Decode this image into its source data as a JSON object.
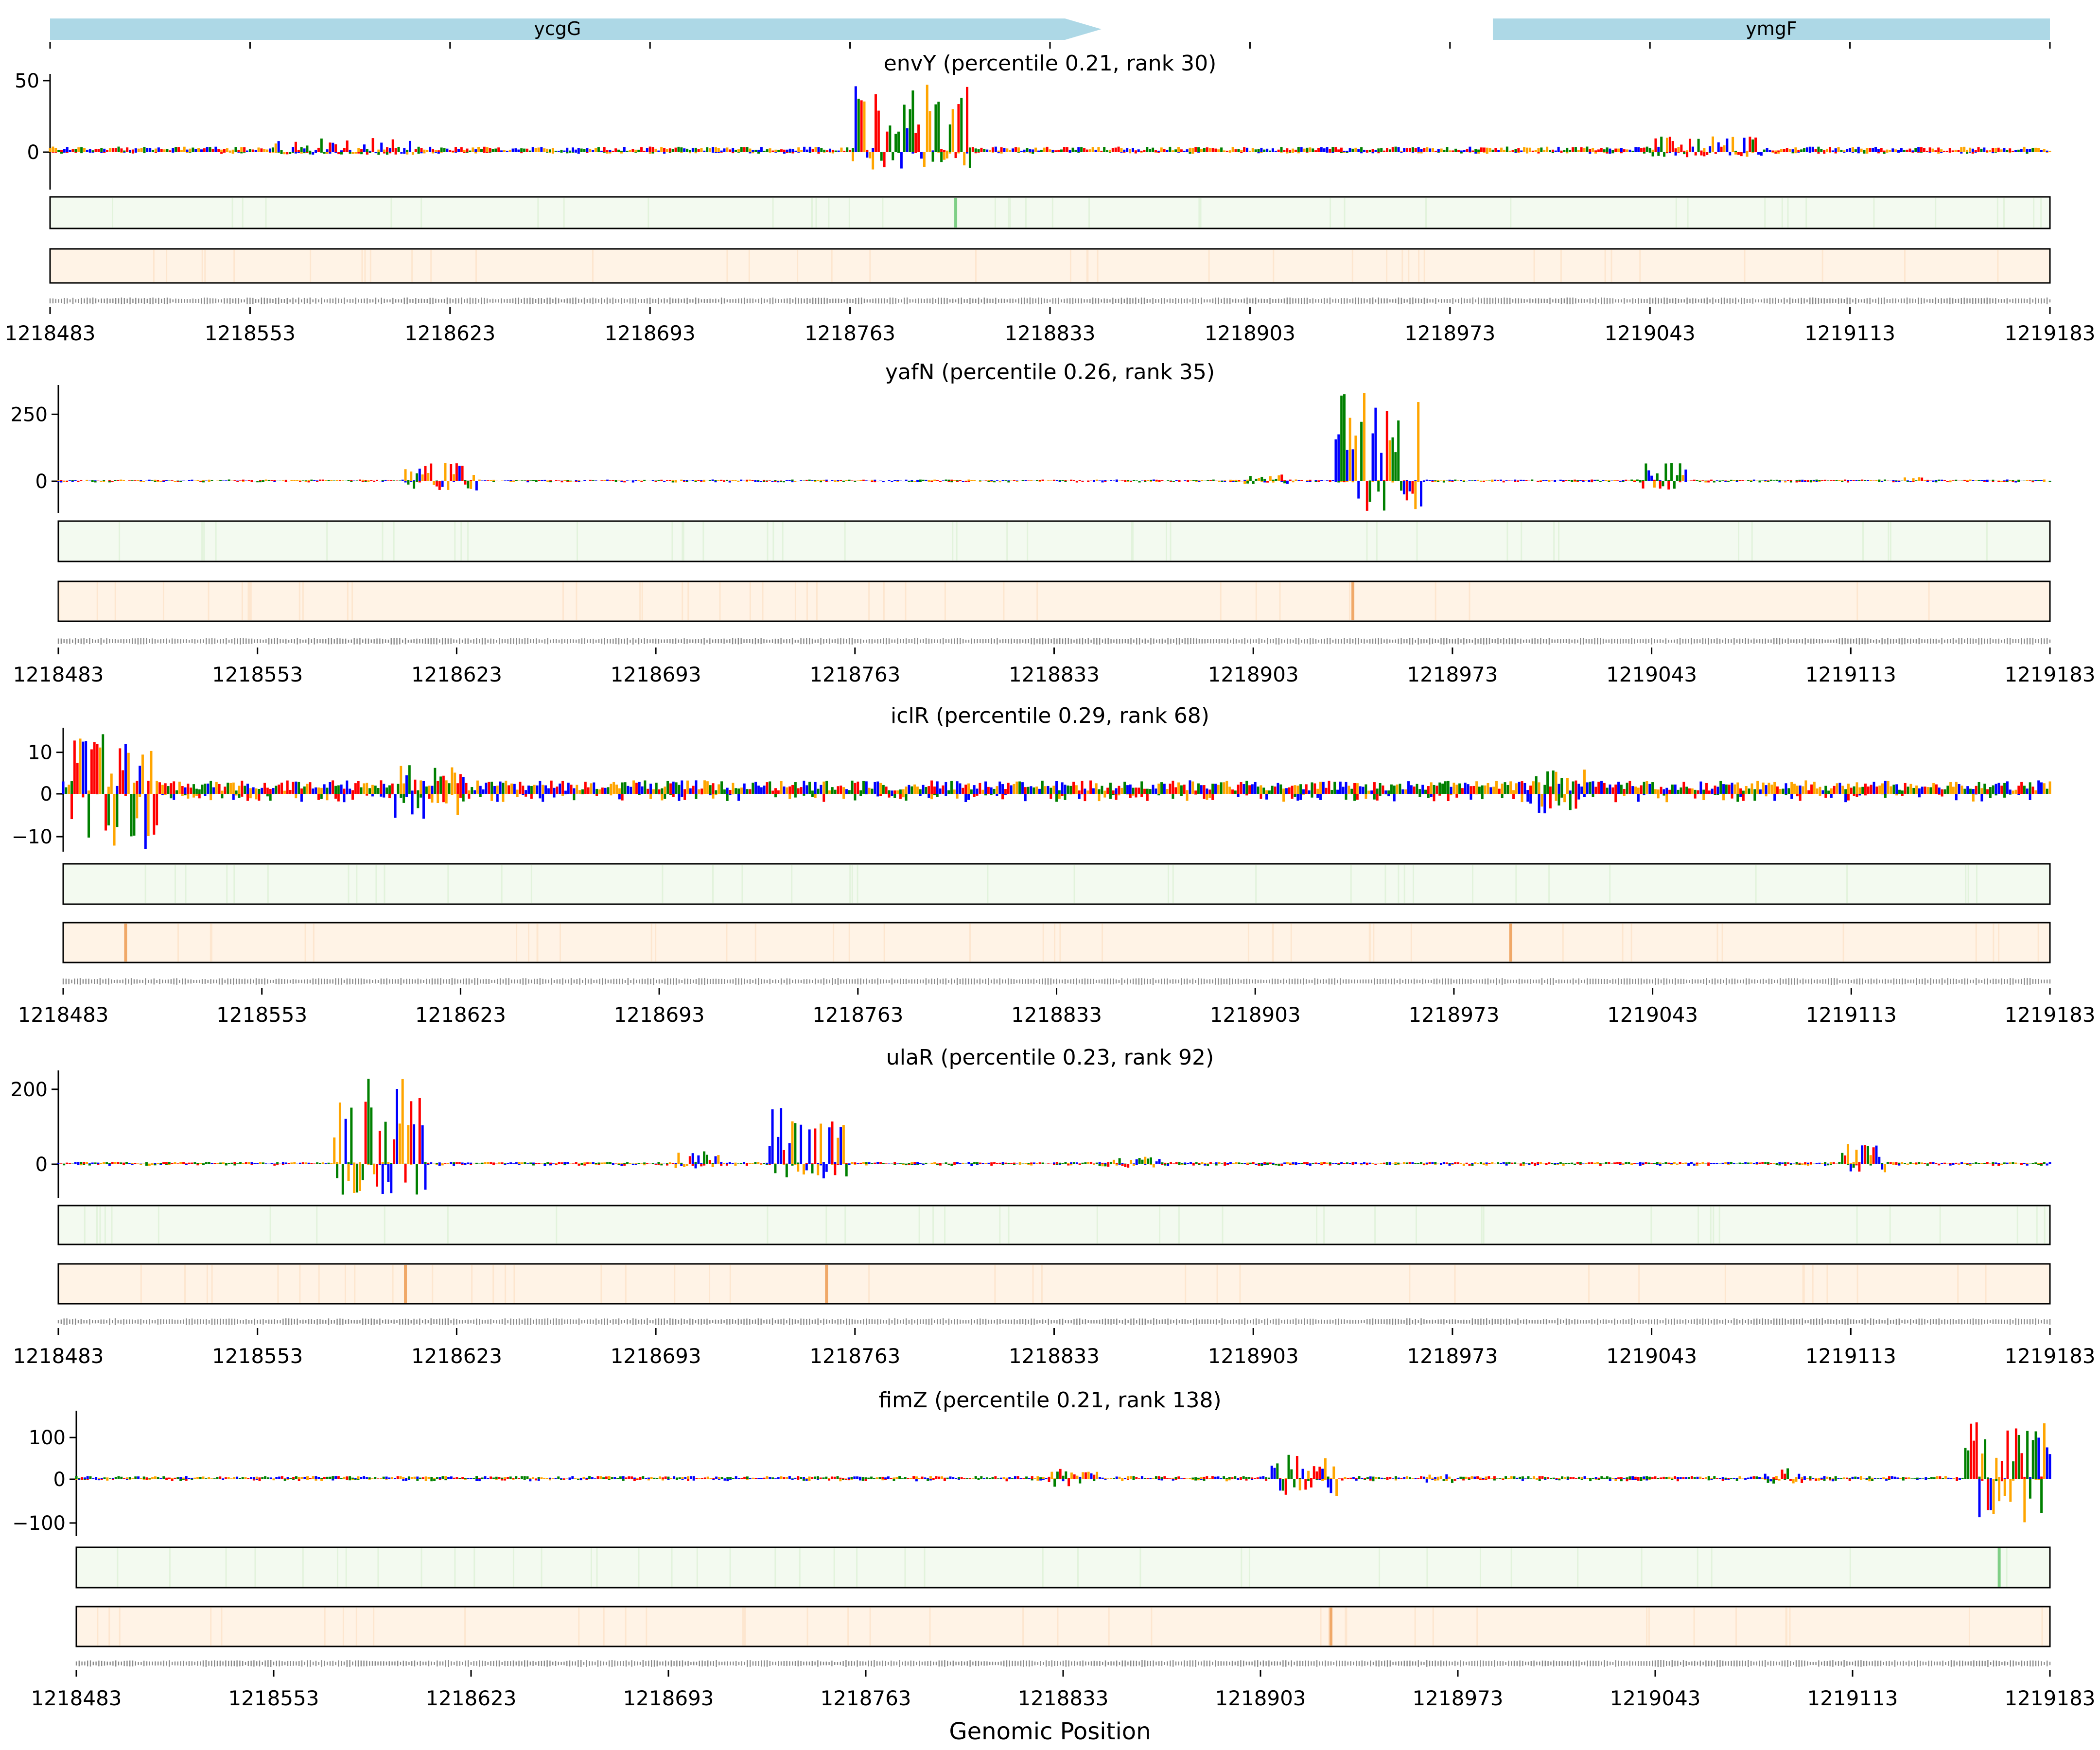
{
  "figure": {
    "xlabel": "Genomic Position"
  },
  "genes": [
    {
      "name": "ycgG",
      "start": 1218483,
      "end": 1218851,
      "strand": "+"
    },
    {
      "name": "ymgF",
      "start": 1218988,
      "end": 1219183,
      "strand": "+"
    }
  ],
  "colors": {
    "A": "#008000",
    "C": "#0000ff",
    "G": "#ffa500",
    "T": "#ff0000",
    "gene": "#add8e6",
    "strip1": "#f3faf0",
    "strip1_peak": "#7fcf86",
    "strip2": "#fff3e6",
    "strip2_peak": "#f0a868"
  },
  "chart_data": [
    {
      "type": "sequence-logo",
      "title": "envY (percentile 0.21, rank 30)",
      "xlim": [
        1218483,
        1219183
      ],
      "x_ticks": [
        "1218483",
        "1218553",
        "1218623",
        "1218693",
        "1218763",
        "1218833",
        "1218903",
        "1218973",
        "1219043",
        "1219113",
        "1219183"
      ],
      "ylim": [
        -52,
        52
      ],
      "y_ticks": [
        {
          "value": 50,
          "label": "50"
        },
        {
          "value": 0,
          "label": "0"
        }
      ],
      "noise": 3,
      "peaks": [
        {
          "start": 1218562,
          "end": 1218610,
          "max": 10,
          "min": -4
        },
        {
          "start": 1218764,
          "end": 1218805,
          "max": 49,
          "min": -25
        },
        {
          "start": 1219043,
          "end": 1219082,
          "max": 11,
          "min": -7
        }
      ],
      "strip1_hot": [
        1218800
      ],
      "strip2_hot": []
    },
    {
      "type": "sequence-logo",
      "title": "yafN (percentile 0.26, rank 35)",
      "xlim": [
        1218483,
        1219183
      ],
      "x_ticks": [
        "1218483",
        "1218553",
        "1218623",
        "1218693",
        "1218763",
        "1218833",
        "1218903",
        "1218973",
        "1219043",
        "1219113",
        "1219183"
      ],
      "ylim": [
        -100,
        345
      ],
      "y_ticks": [
        {
          "value": 250,
          "label": "250"
        },
        {
          "value": 0,
          "label": "0"
        }
      ],
      "noise": 5,
      "peaks": [
        {
          "start": 1218605,
          "end": 1218630,
          "max": 75,
          "min": -30
        },
        {
          "start": 1218900,
          "end": 1218915,
          "max": 25,
          "min": -10
        },
        {
          "start": 1218932,
          "end": 1218962,
          "max": 340,
          "min": -95
        },
        {
          "start": 1219040,
          "end": 1219055,
          "max": 70,
          "min": -28
        },
        {
          "start": 1219132,
          "end": 1219138,
          "max": 25,
          "min": 0
        }
      ],
      "strip1_hot": [],
      "strip2_hot": [
        1218938
      ]
    },
    {
      "type": "sequence-logo",
      "title": "iclR (percentile 0.29, rank 68)",
      "xlim": [
        1218483,
        1219183
      ],
      "x_ticks": [
        "1218483",
        "1218553",
        "1218623",
        "1218693",
        "1218763",
        "1218833",
        "1218903",
        "1218973",
        "1219043",
        "1219113",
        "1219183"
      ],
      "ylim": [
        -13.5,
        15
      ],
      "y_ticks": [
        {
          "value": 10,
          "label": "10"
        },
        {
          "value": 0,
          "label": "0"
        },
        {
          "value": -10,
          "label": "−10"
        }
      ],
      "noise": 2.5,
      "peaks": [
        {
          "start": 1218486,
          "end": 1218516,
          "max": 15,
          "min": -13
        },
        {
          "start": 1218600,
          "end": 1218625,
          "max": 7,
          "min": -6
        },
        {
          "start": 1219000,
          "end": 1219020,
          "max": 6,
          "min": -5
        }
      ],
      "strip1_hot": [],
      "strip2_hot": [
        1218505,
        1218993
      ]
    },
    {
      "type": "sequence-logo",
      "title": "ulaR (percentile 0.23, rank 92)",
      "xlim": [
        1218483,
        1219183
      ],
      "x_ticks": [
        "1218483",
        "1218553",
        "1218623",
        "1218693",
        "1218763",
        "1218833",
        "1218903",
        "1218973",
        "1219043",
        "1219113",
        "1219183"
      ],
      "ylim": [
        -75,
        240
      ],
      "y_ticks": [
        {
          "value": 200,
          "label": "200"
        },
        {
          "value": 0,
          "label": "0"
        }
      ],
      "noise": 5,
      "peaks": [
        {
          "start": 1218580,
          "end": 1218612,
          "max": 235,
          "min": -70
        },
        {
          "start": 1218700,
          "end": 1218715,
          "max": 35,
          "min": -10
        },
        {
          "start": 1218733,
          "end": 1218760,
          "max": 150,
          "min": -40
        },
        {
          "start": 1218850,
          "end": 1218870,
          "max": 20,
          "min": -8
        },
        {
          "start": 1219110,
          "end": 1219125,
          "max": 60,
          "min": -20
        }
      ],
      "strip1_hot": [],
      "strip2_hot": [
        1218605,
        1218753
      ]
    },
    {
      "type": "sequence-logo",
      "title": "fimZ (percentile 0.21, rank 138)",
      "xlim": [
        1218483,
        1219183
      ],
      "x_ticks": [
        "1218483",
        "1218553",
        "1218623",
        "1218693",
        "1218763",
        "1218833",
        "1218903",
        "1218973",
        "1219043",
        "1219113",
        "1219183"
      ],
      "ylim": [
        -130,
        155
      ],
      "y_ticks": [
        {
          "value": 100,
          "label": "100"
        },
        {
          "value": 0,
          "label": "0"
        },
        {
          "value": -100,
          "label": "−100"
        }
      ],
      "noise": 6,
      "peaks": [
        {
          "start": 1218828,
          "end": 1218845,
          "max": 25,
          "min": -20
        },
        {
          "start": 1218907,
          "end": 1218930,
          "max": 60,
          "min": -45
        },
        {
          "start": 1218962,
          "end": 1218975,
          "max": 12,
          "min": -10
        },
        {
          "start": 1219082,
          "end": 1219095,
          "max": 30,
          "min": -10
        },
        {
          "start": 1219153,
          "end": 1219183,
          "max": 150,
          "min": -125
        }
      ],
      "strip1_hot": [
        1219165
      ],
      "strip2_hot": [
        1218928
      ]
    }
  ]
}
